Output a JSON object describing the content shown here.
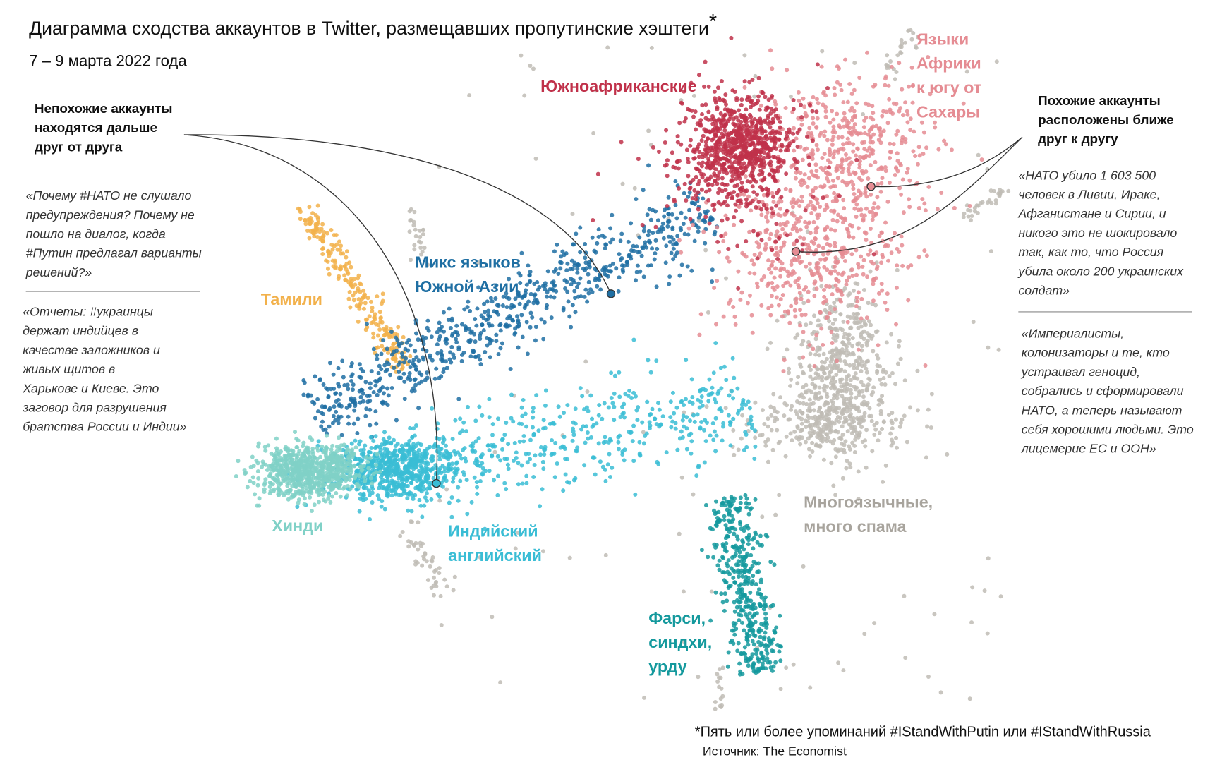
{
  "title": "Диаграмма сходства аккаунтов в Twitter, размещавших пропутинские хэштеги",
  "title_mark": "*",
  "subtitle": "7 – 9 марта 2022 года",
  "callouts": [
    {
      "lines": [
        "Непохожие аккаунты",
        "находятся дальше",
        "друг от друга"
      ]
    },
    {
      "lines": [
        "Похожие аккаунты",
        "расположены ближе",
        "друг к другу"
      ]
    }
  ],
  "quotes": [
    {
      "lines": [
        "«Почему #НАТО не слушало",
        "предупреждения? Почему не",
        "пошло на диалог, когда",
        "#Путин предлагал варианты",
        "решений?»"
      ]
    },
    {
      "lines": [
        "«Отчеты: #украинцы",
        "держат индийцев в",
        "качестве заложников и",
        "живых щитов в",
        "Харькове и Киеве.  Это",
        "заговор для разрушения",
        "братства России и Индии»"
      ]
    },
    {
      "lines": [
        "«НАТО убило 1 603 500",
        "человек в Ливии, Ираке,",
        "Афганистане и Сирии, и",
        "никого это не шокировало",
        "так, как то, что Россия",
        "убила около 200 украинских",
        "солдат»"
      ]
    },
    {
      "lines": [
        "«Империалисты,",
        "колонизаторы и те, кто",
        "устраивал геноцид,",
        "собрались и сформировали",
        "НАТО, а теперь называют",
        "себя хорошими людьми. Это",
        "лицемерие ЕС и ООН»"
      ]
    }
  ],
  "clusters": [
    {
      "lines": [
        "Южноафриканские"
      ],
      "color": "#c0314a"
    },
    {
      "lines": [
        "Языки",
        "Африки",
        "к югу от",
        "Сахары"
      ],
      "color": "#e58c93"
    },
    {
      "lines": [
        "Микс языков",
        "Южной Азии"
      ],
      "color": "#1f6fa3"
    },
    {
      "lines": [
        "Тамили"
      ],
      "color": "#f2b14b"
    },
    {
      "lines": [
        "Хинди"
      ],
      "color": "#80d1c7"
    },
    {
      "lines": [
        "Индийский",
        "английский"
      ],
      "color": "#3abdd5"
    },
    {
      "lines": [
        "Фарси,",
        "синдхи,",
        "урду"
      ],
      "color": "#14999d"
    },
    {
      "lines": [
        "Многоязычные,",
        "много спама"
      ],
      "color": "#bfbcb5"
    }
  ],
  "footnote": "*Пять или более упоминаний #IStandWithPutin или #IStandWithRussia",
  "source": "Источник: The Economist"
}
